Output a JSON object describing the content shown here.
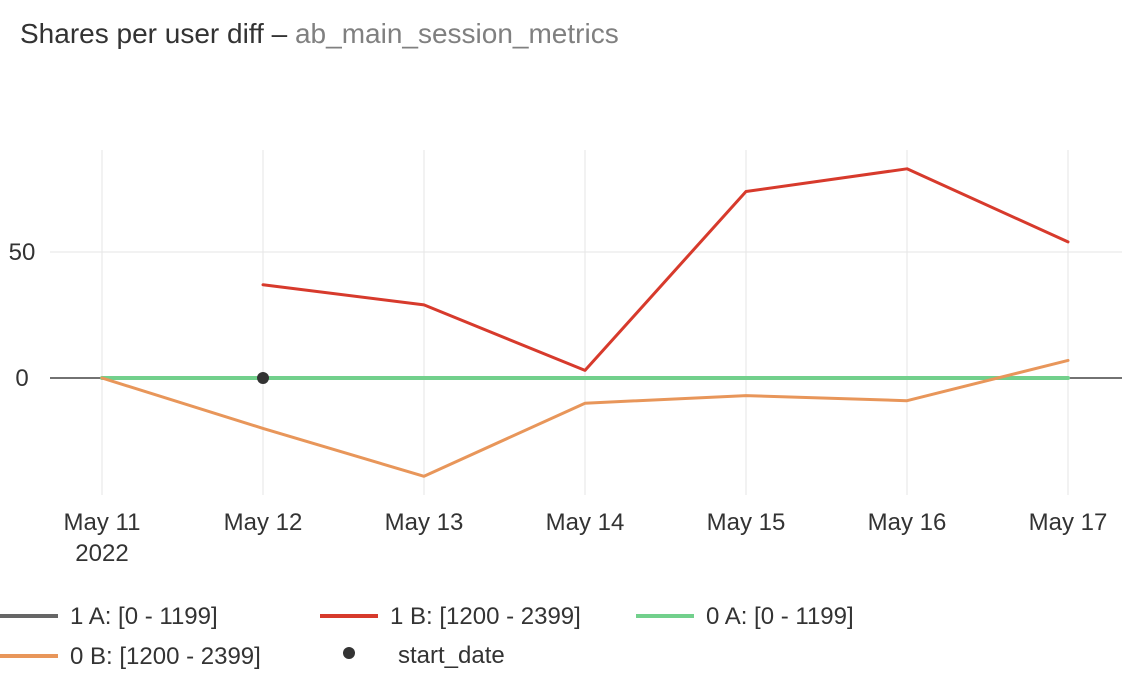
{
  "header": {
    "title": "Shares per user diff",
    "separator": "–",
    "subtitle": "ab_main_session_metrics"
  },
  "chart_data": {
    "type": "line",
    "title": "Shares per user diff",
    "subtitle": "ab_main_session_metrics",
    "xlabel": "",
    "ylabel": "",
    "x_ticks": [
      "May 11",
      "May 12",
      "May 13",
      "May 14",
      "May 15",
      "May 16",
      "May 17"
    ],
    "x_tick_year": "2022",
    "y_ticks": [
      50,
      0
    ],
    "ylim": [
      -46,
      90
    ],
    "grid": true,
    "legend_position": "bottom",
    "series": [
      {
        "name": "1 A: [0 - 1199]",
        "color": "#666666",
        "x": [
          "May 11",
          "May 12",
          "May 13",
          "May 14",
          "May 15",
          "May 16",
          "May 17"
        ],
        "values": [
          0,
          0,
          0,
          0,
          0,
          0,
          0
        ]
      },
      {
        "name": "1 B: [1200 - 2399]",
        "color": "#d73a2c",
        "x": [
          "May 12",
          "May 13",
          "May 14",
          "May 15",
          "May 16",
          "May 17"
        ],
        "values": [
          37,
          29,
          3,
          74,
          83,
          54
        ]
      },
      {
        "name": "0 A: [0 - 1199]",
        "color": "#72d08c",
        "x": [
          "May 11",
          "May 12",
          "May 13",
          "May 14",
          "May 15",
          "May 16",
          "May 17"
        ],
        "values": [
          0,
          0,
          0,
          0,
          0,
          0,
          0
        ]
      },
      {
        "name": "0 B: [1200 - 2399]",
        "color": "#e8965a",
        "x": [
          "May 11",
          "May 12",
          "May 13",
          "May 14",
          "May 15",
          "May 16",
          "May 17"
        ],
        "values": [
          0,
          -20,
          -39,
          -10,
          -7,
          -9,
          7
        ]
      },
      {
        "name": "start_date",
        "color": "#333333",
        "marker": "dot",
        "x": [
          "May 12"
        ],
        "values": [
          0
        ]
      }
    ]
  }
}
